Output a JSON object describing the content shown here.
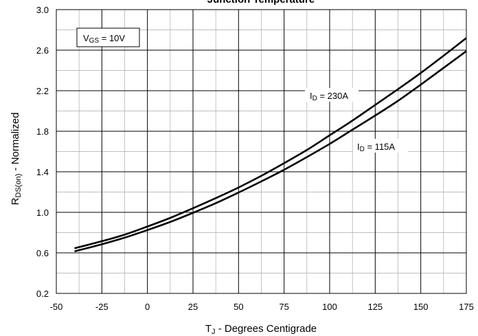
{
  "chart_data": {
    "type": "line",
    "title": "Junction Temperature",
    "xlabel": {
      "main": "T",
      "sub": "J",
      "rest": " - Degrees Centigrade"
    },
    "ylabel": {
      "main": "R",
      "sub": "DS(on)",
      "rest": " - Normalized"
    },
    "xlim": [
      -50,
      175
    ],
    "ylim": [
      0.2,
      3.0
    ],
    "x_ticks": [
      -50,
      -25,
      0,
      25,
      50,
      75,
      100,
      125,
      150,
      175
    ],
    "y_ticks": [
      0.2,
      0.6,
      1.0,
      1.4,
      1.8,
      2.2,
      2.6,
      3.0
    ],
    "y_tick_labels": [
      "0.2",
      "0.6",
      "1.0",
      "1.4",
      "1.8",
      "2.2",
      "2.6",
      "3.0"
    ],
    "x_minor_step": 12.5,
    "y_minor_step": 0.2,
    "grid": true,
    "condition_box": {
      "main": "V",
      "sub": "GS",
      "rest": " = 10V"
    },
    "series": [
      {
        "name": "I_D = 230A",
        "label": {
          "main": "I",
          "sub": "D",
          "rest": " = 230A"
        },
        "x": [
          -40,
          -25,
          -12.5,
          0,
          12.5,
          25,
          37.5,
          50,
          62.5,
          75,
          87.5,
          100,
          112.5,
          125,
          137.5,
          150,
          162.5,
          175
        ],
        "y": [
          0.645,
          0.715,
          0.78,
          0.86,
          0.945,
          1.04,
          1.14,
          1.245,
          1.36,
          1.485,
          1.615,
          1.76,
          1.905,
          2.06,
          2.215,
          2.375,
          2.545,
          2.72
        ]
      },
      {
        "name": "I_D = 115A",
        "label": {
          "main": "I",
          "sub": "D",
          "rest": " = 115A"
        },
        "x": [
          -40,
          -25,
          -12.5,
          0,
          12.5,
          25,
          37.5,
          50,
          62.5,
          75,
          87.5,
          100,
          112.5,
          125,
          137.5,
          150,
          162.5,
          175
        ],
        "y": [
          0.615,
          0.685,
          0.75,
          0.825,
          0.905,
          0.995,
          1.09,
          1.195,
          1.305,
          1.42,
          1.545,
          1.675,
          1.815,
          1.955,
          2.1,
          2.26,
          2.425,
          2.59
        ]
      }
    ]
  }
}
